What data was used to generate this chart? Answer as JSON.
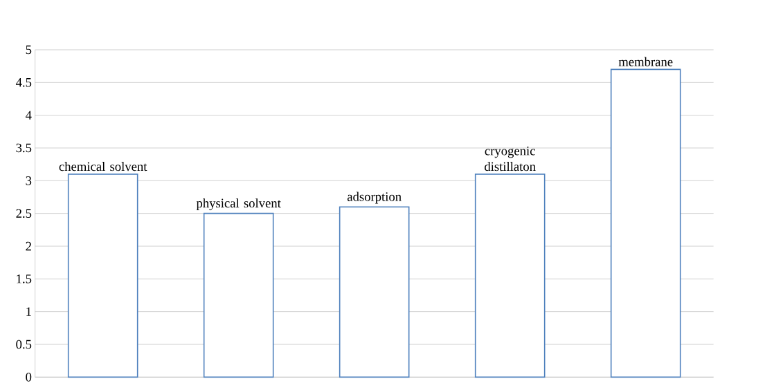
{
  "chart_data": {
    "type": "bar",
    "categories": [
      "chemical solvent",
      "physical solvent",
      "adsorption",
      "cryogenic distillaton",
      "membrane"
    ],
    "values": [
      3.1,
      2.5,
      2.6,
      3.1,
      4.7
    ],
    "color": "#4f81bd",
    "ylim": [
      0,
      5
    ],
    "yticks": [
      0,
      0.5,
      1,
      1.5,
      2,
      2.5,
      3,
      3.5,
      4,
      4.5,
      5
    ],
    "grid": "y"
  }
}
